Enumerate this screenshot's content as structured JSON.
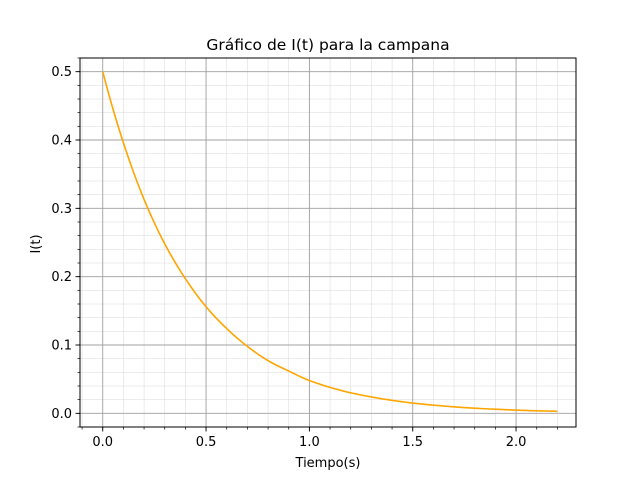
{
  "chart_data": {
    "type": "line",
    "title": "Gráfico de I(t) para la campana",
    "xlabel": "Tiempo(s)",
    "ylabel": "I(t)",
    "xlim": [
      -0.11,
      2.29
    ],
    "ylim": [
      -0.02,
      0.52
    ],
    "xticks": [
      0.0,
      0.5,
      1.0,
      1.5,
      2.0
    ],
    "xtick_labels": [
      "0.0",
      "0.5",
      "1.0",
      "1.5",
      "2.0"
    ],
    "yticks": [
      0.0,
      0.1,
      0.2,
      0.3,
      0.4,
      0.5
    ],
    "ytick_labels": [
      "0.0",
      "0.1",
      "0.2",
      "0.3",
      "0.4",
      "0.5"
    ],
    "grid": true,
    "minor_grid": true,
    "series": [
      {
        "color": "#ffa500",
        "x": [
          0.0,
          0.1,
          0.2,
          0.3,
          0.4,
          0.5,
          0.6,
          0.7,
          0.8,
          0.9,
          1.0,
          1.1,
          1.2,
          1.3,
          1.4,
          1.5,
          1.6,
          1.7,
          1.8,
          1.9,
          2.0,
          2.1,
          2.2
        ],
        "y": [
          0.5,
          0.396,
          0.313,
          0.248,
          0.197,
          0.156,
          0.124,
          0.098,
          0.077,
          0.062,
          0.048,
          0.038,
          0.03,
          0.024,
          0.019,
          0.015,
          0.012,
          0.0095,
          0.0075,
          0.006,
          0.0047,
          0.0037,
          0.003
        ]
      }
    ]
  }
}
